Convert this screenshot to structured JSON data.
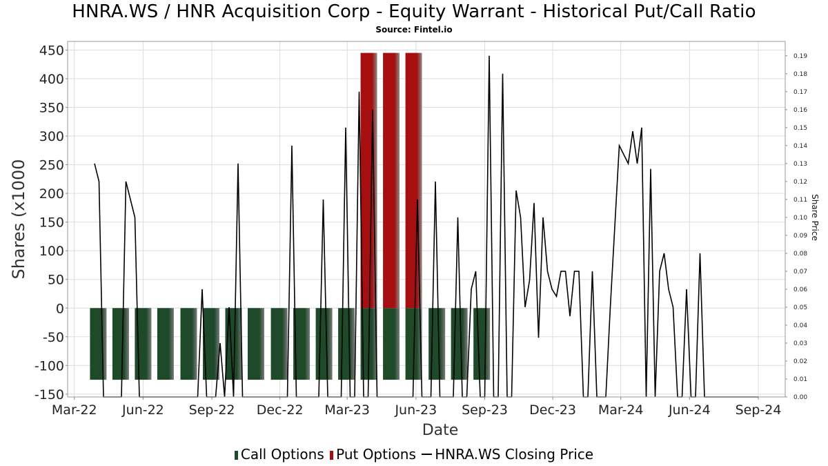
{
  "title": "HNRA.WS / HNR Acquisition Corp - Equity Warrant - Historical Put/Call Ratio",
  "subtitle": "Source: Fintel.io",
  "legend": {
    "call": "Call Options",
    "put": "Put Options",
    "price": "HNRA.WS Closing Price"
  },
  "colors": {
    "call": "#1f4a2a",
    "put": "#a50f0f",
    "price": "#000000",
    "grid": "#dddddd"
  },
  "chart_data": {
    "type": "bar",
    "xlabel": "Date",
    "ylabel": "Shares (x1000",
    "y2label": "Share Price",
    "ylim": [
      -155,
      465
    ],
    "y2lim": [
      0.0,
      0.198
    ],
    "yticks": [
      -150,
      -100,
      -50,
      0,
      50,
      100,
      150,
      200,
      250,
      300,
      350,
      400,
      450
    ],
    "y2ticks": [
      "0.00",
      "0.01",
      "0.02",
      "0.03",
      "0.04",
      "0.05",
      "0.06",
      "0.07",
      "0.08",
      "0.09",
      "0.10",
      "0.11",
      "0.12",
      "0.13",
      "0.14",
      "0.15",
      "0.16",
      "0.17",
      "0.18",
      "0.19"
    ],
    "xlim": [
      "2022-02-20",
      "2024-10-07"
    ],
    "xticks": [
      {
        "date": "2022-03-01",
        "label": "Mar-22"
      },
      {
        "date": "2022-06-01",
        "label": "Jun-22"
      },
      {
        "date": "2022-09-01",
        "label": "Sep-22"
      },
      {
        "date": "2022-12-01",
        "label": "Dec-22"
      },
      {
        "date": "2023-03-01",
        "label": "Mar-23"
      },
      {
        "date": "2023-06-01",
        "label": "Jun-23"
      },
      {
        "date": "2023-09-01",
        "label": "Sep-23"
      },
      {
        "date": "2023-12-01",
        "label": "Dec-23"
      },
      {
        "date": "2024-03-01",
        "label": "Mar-24"
      },
      {
        "date": "2024-06-01",
        "label": "Jun-24"
      },
      {
        "date": "2024-09-01",
        "label": "Sep-24"
      }
    ],
    "grid": true,
    "legend_position": "bottom",
    "series": [
      {
        "name": "Call Options",
        "bars": [
          {
            "date": "2022-04-02",
            "value": -125
          },
          {
            "date": "2022-05-02",
            "value": -125
          },
          {
            "date": "2022-06-01",
            "value": -125
          },
          {
            "date": "2022-07-01",
            "value": -125
          },
          {
            "date": "2022-08-01",
            "value": -125
          },
          {
            "date": "2022-08-31",
            "value": -125
          },
          {
            "date": "2022-09-30",
            "value": -125
          },
          {
            "date": "2022-10-30",
            "value": -125
          },
          {
            "date": "2022-11-30",
            "value": -125
          },
          {
            "date": "2022-12-30",
            "value": -125
          },
          {
            "date": "2023-01-29",
            "value": -125
          },
          {
            "date": "2023-02-28",
            "value": -125
          },
          {
            "date": "2023-03-30",
            "value": -125
          },
          {
            "date": "2023-04-29",
            "value": -125
          },
          {
            "date": "2023-05-29",
            "value": -125
          },
          {
            "date": "2023-06-29",
            "value": -125
          },
          {
            "date": "2023-07-29",
            "value": -125
          },
          {
            "date": "2023-08-28",
            "value": -125
          }
        ]
      },
      {
        "name": "Put Options",
        "bars": [
          {
            "date": "2023-03-30",
            "value": 445
          },
          {
            "date": "2023-04-29",
            "value": 445
          },
          {
            "date": "2023-05-29",
            "value": 445
          }
        ]
      },
      {
        "name": "HNRA.WS Closing Price",
        "points": [
          [
            "2022-03-28",
            0.13
          ],
          [
            "2022-04-03",
            0.12
          ],
          [
            "2022-04-09",
            0.0
          ],
          [
            "2022-04-15",
            0.0
          ],
          [
            "2022-04-21",
            0.0
          ],
          [
            "2022-04-27",
            0.0
          ],
          [
            "2022-05-03",
            0.0
          ],
          [
            "2022-05-09",
            0.12
          ],
          [
            "2022-05-21",
            0.1
          ],
          [
            "2022-05-27",
            0.0
          ],
          [
            "2022-06-02",
            0.0
          ],
          [
            "2022-06-08",
            0.0
          ],
          [
            "2022-06-14",
            0.0
          ],
          [
            "2022-06-20",
            0.0
          ],
          [
            "2022-06-26",
            0.0
          ],
          [
            "2022-07-02",
            0.0
          ],
          [
            "2022-07-08",
            0.0
          ],
          [
            "2022-07-14",
            0.0
          ],
          [
            "2022-07-20",
            0.0
          ],
          [
            "2022-07-26",
            0.0
          ],
          [
            "2022-08-01",
            0.0
          ],
          [
            "2022-08-07",
            0.0
          ],
          [
            "2022-08-13",
            0.0
          ],
          [
            "2022-08-19",
            0.06
          ],
          [
            "2022-08-25",
            0.0
          ],
          [
            "2022-08-31",
            0.0
          ],
          [
            "2022-09-06",
            0.0
          ],
          [
            "2022-09-12",
            0.03
          ],
          [
            "2022-09-18",
            0.0
          ],
          [
            "2022-09-24",
            0.05
          ],
          [
            "2022-09-30",
            0.0
          ],
          [
            "2022-10-06",
            0.13
          ],
          [
            "2022-10-12",
            0.0
          ],
          [
            "2022-10-18",
            0.0
          ],
          [
            "2022-10-24",
            0.0
          ],
          [
            "2022-10-30",
            0.0
          ],
          [
            "2022-11-05",
            0.0
          ],
          [
            "2022-11-11",
            0.0
          ],
          [
            "2022-11-17",
            0.0
          ],
          [
            "2022-11-23",
            0.0
          ],
          [
            "2022-11-29",
            0.0
          ],
          [
            "2022-12-05",
            0.0
          ],
          [
            "2022-12-11",
            0.0
          ],
          [
            "2022-12-17",
            0.14
          ],
          [
            "2022-12-23",
            0.0
          ],
          [
            "2022-12-29",
            0.0
          ],
          [
            "2023-01-04",
            0.0
          ],
          [
            "2023-01-10",
            0.0
          ],
          [
            "2023-01-16",
            0.0
          ],
          [
            "2023-01-22",
            0.0
          ],
          [
            "2023-01-28",
            0.11
          ],
          [
            "2023-02-03",
            0.0
          ],
          [
            "2023-02-09",
            0.0
          ],
          [
            "2023-02-15",
            0.0
          ],
          [
            "2023-02-21",
            0.0
          ],
          [
            "2023-02-27",
            0.15
          ],
          [
            "2023-03-05",
            0.0
          ],
          [
            "2023-03-11",
            0.0
          ],
          [
            "2023-03-17",
            0.17
          ],
          [
            "2023-03-23",
            0.0
          ],
          [
            "2023-03-29",
            0.0
          ],
          [
            "2023-04-04",
            0.16
          ],
          [
            "2023-04-10",
            0.0
          ],
          [
            "2023-04-16",
            0.0
          ],
          [
            "2023-04-22",
            0.0
          ],
          [
            "2023-04-28",
            0.0
          ],
          [
            "2023-05-04",
            0.0
          ],
          [
            "2023-05-10",
            0.0
          ],
          [
            "2023-05-16",
            0.0
          ],
          [
            "2023-05-22",
            0.0
          ],
          [
            "2023-05-28",
            0.0
          ],
          [
            "2023-06-03",
            0.11
          ],
          [
            "2023-06-09",
            0.0
          ],
          [
            "2023-06-15",
            0.0
          ],
          [
            "2023-06-21",
            0.0
          ],
          [
            "2023-06-27",
            0.12
          ],
          [
            "2023-07-03",
            0.0
          ],
          [
            "2023-07-09",
            0.0
          ],
          [
            "2023-07-15",
            0.0
          ],
          [
            "2023-07-21",
            0.0
          ],
          [
            "2023-07-27",
            0.1
          ],
          [
            "2023-08-02",
            0.0
          ],
          [
            "2023-08-08",
            0.0
          ],
          [
            "2023-08-14",
            0.06
          ],
          [
            "2023-08-20",
            0.07
          ],
          [
            "2023-08-26",
            0.0
          ],
          [
            "2023-09-01",
            0.0
          ],
          [
            "2023-09-07",
            0.19
          ],
          [
            "2023-09-13",
            0.0
          ],
          [
            "2023-09-19",
            0.0
          ],
          [
            "2023-09-25",
            0.18
          ],
          [
            "2023-10-01",
            0.0
          ],
          [
            "2023-10-07",
            0.0
          ],
          [
            "2023-10-13",
            0.115
          ],
          [
            "2023-10-19",
            0.1
          ],
          [
            "2023-10-25",
            0.05
          ],
          [
            "2023-10-31",
            0.065
          ],
          [
            "2023-11-06",
            0.108
          ],
          [
            "2023-11-12",
            0.033
          ],
          [
            "2023-11-18",
            0.1
          ],
          [
            "2023-11-24",
            0.07
          ],
          [
            "2023-11-30",
            0.06
          ],
          [
            "2023-12-06",
            0.056
          ],
          [
            "2023-12-12",
            0.07
          ],
          [
            "2023-12-18",
            0.07
          ],
          [
            "2023-12-24",
            0.045
          ],
          [
            "2023-12-30",
            0.07
          ],
          [
            "2024-01-05",
            0.07
          ],
          [
            "2024-01-11",
            0.0
          ],
          [
            "2024-01-17",
            0.0
          ],
          [
            "2024-01-23",
            0.07
          ],
          [
            "2024-01-29",
            0.0
          ],
          [
            "2024-02-04",
            0.0
          ],
          [
            "2024-02-10",
            0.0
          ],
          [
            "2024-02-16",
            0.05
          ],
          [
            "2024-02-22",
            0.095
          ],
          [
            "2024-02-28",
            0.14
          ],
          [
            "2024-03-05",
            0.135
          ],
          [
            "2024-03-11",
            0.13
          ],
          [
            "2024-03-17",
            0.148
          ],
          [
            "2024-03-23",
            0.13
          ],
          [
            "2024-03-29",
            0.15
          ],
          [
            "2024-04-04",
            0.0
          ],
          [
            "2024-04-10",
            0.127
          ],
          [
            "2024-04-16",
            0.0
          ],
          [
            "2024-04-22",
            0.07
          ],
          [
            "2024-04-28",
            0.08
          ],
          [
            "2024-05-04",
            0.06
          ],
          [
            "2024-05-10",
            0.05
          ],
          [
            "2024-05-16",
            0.0
          ],
          [
            "2024-05-22",
            0.0
          ],
          [
            "2024-05-28",
            0.06
          ],
          [
            "2024-06-03",
            0.0
          ],
          [
            "2024-06-09",
            0.0
          ],
          [
            "2024-06-15",
            0.08
          ],
          [
            "2024-06-21",
            0.0
          ],
          [
            "2024-06-27",
            0.0
          ],
          [
            "2024-07-03",
            0.0
          ],
          [
            "2024-07-09",
            0.0
          ],
          [
            "2024-07-15",
            0.0
          ],
          [
            "2024-07-21",
            0.0
          ],
          [
            "2024-07-27",
            0.0
          ],
          [
            "2024-08-02",
            0.0
          ],
          [
            "2024-08-08",
            0.0
          ],
          [
            "2024-08-14",
            0.0
          ],
          [
            "2024-08-20",
            0.0
          ],
          [
            "2024-08-26",
            0.0
          ],
          [
            "2024-09-01",
            0.0
          ]
        ]
      }
    ]
  }
}
